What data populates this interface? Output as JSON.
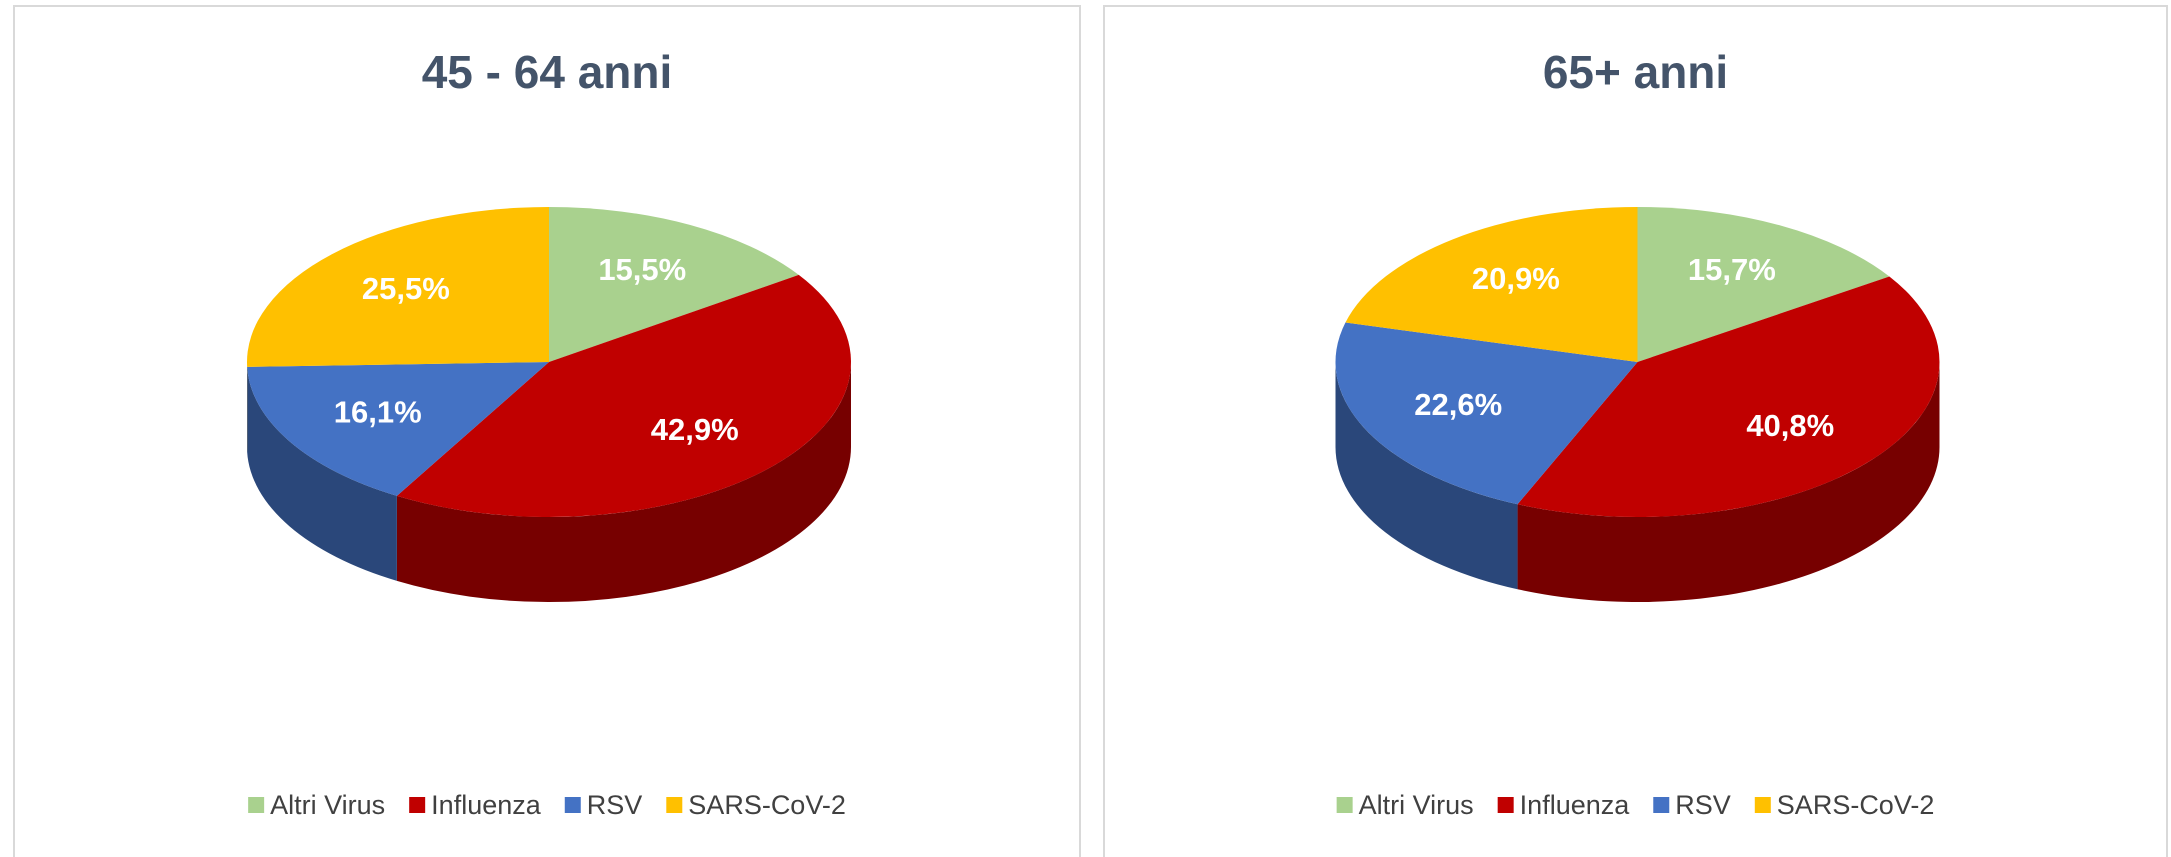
{
  "chart_data": [
    {
      "type": "pie",
      "title": "45 - 64 anni",
      "categories": [
        "Altri Virus",
        "Influenza",
        "RSV",
        "SARS-CoV-2"
      ],
      "values": [
        15.5,
        42.9,
        16.1,
        25.5
      ],
      "value_labels": [
        "15,5%",
        "42,9%",
        "16,1%",
        "25,5%"
      ],
      "colors": [
        "#a9d18e",
        "#c00000",
        "#4472c4",
        "#ffc000"
      ]
    },
    {
      "type": "pie",
      "title": "65+ anni",
      "categories": [
        "Altri Virus",
        "Influenza",
        "RSV",
        "SARS-CoV-2"
      ],
      "values": [
        15.7,
        40.8,
        22.6,
        20.9
      ],
      "value_labels": [
        "15,7%",
        "40,8%",
        "22,6%",
        "20,9%"
      ],
      "colors": [
        "#a9d18e",
        "#c00000",
        "#4472c4",
        "#ffc000"
      ]
    }
  ]
}
